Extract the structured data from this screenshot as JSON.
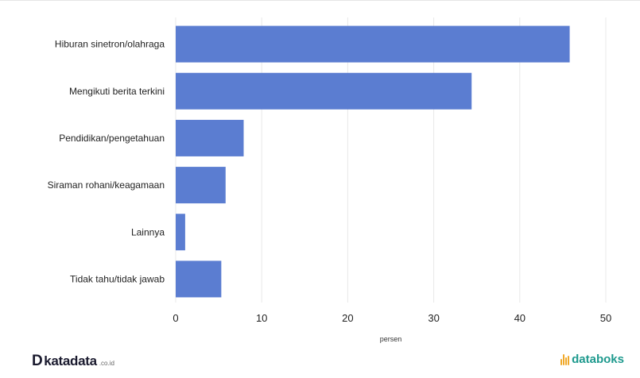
{
  "chart_data": {
    "type": "bar",
    "orientation": "horizontal",
    "categories": [
      "Hiburan sinetron/olahraga",
      "Mengikuti berita terkini",
      "Pendidikan/pengetahuan",
      "Siraman rohani/keagamaan",
      "Lainnya",
      "Tidak tahu/tidak jawab"
    ],
    "values": [
      45.8,
      34.4,
      7.9,
      5.8,
      1.1,
      5.3
    ],
    "xlabel": "persen",
    "ylabel": "",
    "xlim": [
      0,
      50
    ],
    "xticks": [
      0,
      10,
      20,
      30,
      40,
      50
    ],
    "grid": true,
    "bar_color": "#5b7dd1",
    "grid_color": "#e8e8e8"
  },
  "branding": {
    "katadata_mark": "D",
    "katadata_name": "katadata",
    "katadata_tld": ".co.id",
    "databoks_name": "databoks",
    "databoks_color": "#1f9a8e",
    "databoks_icon_color": "#f0a92b"
  }
}
